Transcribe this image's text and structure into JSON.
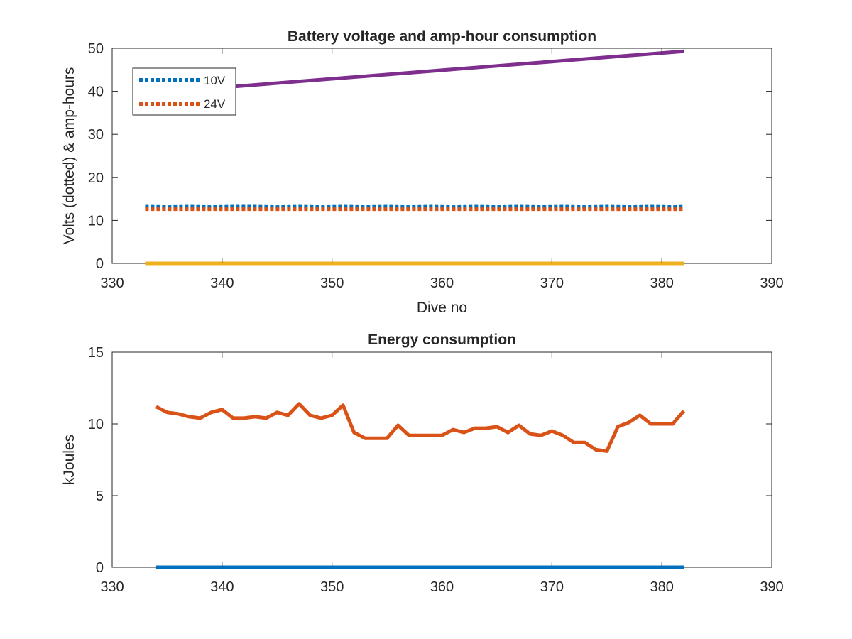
{
  "chart_data": [
    {
      "type": "line",
      "title": "Battery voltage and amp-hour consumption",
      "xlabel": "Dive no",
      "ylabel": "Volts (dotted) & amp-hours",
      "xlim": [
        330,
        390
      ],
      "ylim": [
        0,
        50
      ],
      "xticks": [
        "330",
        "340",
        "350",
        "360",
        "370",
        "380",
        "390"
      ],
      "yticks": [
        "0",
        "10",
        "20",
        "30",
        "40",
        "50"
      ],
      "legend_placement": "top-left",
      "grid": false,
      "series": [
        {
          "name": "10V",
          "style": "dotted",
          "color": "#0072BD",
          "x": [
            333,
            335,
            337,
            339,
            341,
            343,
            345,
            347,
            349,
            351,
            353,
            355,
            357,
            359,
            361,
            363,
            365,
            367,
            369,
            371,
            373,
            375,
            377,
            379,
            381,
            382
          ],
          "y": [
            13.2,
            13.1,
            13.2,
            13.1,
            13.2,
            13.2,
            13.1,
            13.2,
            13.1,
            13.2,
            13.1,
            13.2,
            13.1,
            13.2,
            13.1,
            13.2,
            13.1,
            13.2,
            13.1,
            13.2,
            13.1,
            13.2,
            13.1,
            13.2,
            13.1,
            13.2
          ]
        },
        {
          "name": "24V",
          "style": "dotted",
          "color": "#D95319",
          "x": [
            333,
            335,
            337,
            339,
            341,
            343,
            345,
            347,
            349,
            351,
            353,
            355,
            357,
            359,
            361,
            363,
            365,
            367,
            369,
            371,
            373,
            375,
            377,
            379,
            381,
            382
          ],
          "y": [
            12.6,
            12.6,
            12.6,
            12.6,
            12.6,
            12.6,
            12.6,
            12.6,
            12.6,
            12.6,
            12.6,
            12.6,
            12.6,
            12.6,
            12.6,
            12.6,
            12.6,
            12.6,
            12.6,
            12.6,
            12.6,
            12.6,
            12.6,
            12.6,
            12.6,
            12.6
          ]
        },
        {
          "style": "solid",
          "color": "#EDB120",
          "x": [
            333,
            382
          ],
          "y": [
            0,
            0
          ]
        },
        {
          "style": "solid",
          "color": "#7E2F8E",
          "x": [
            333,
            382
          ],
          "y": [
            39.5,
            49.3
          ]
        }
      ]
    },
    {
      "type": "line",
      "title": "Energy consumption",
      "xlabel": "",
      "ylabel": "kJoules",
      "xlim": [
        330,
        390
      ],
      "ylim": [
        0,
        15
      ],
      "xticks": [
        "330",
        "340",
        "350",
        "360",
        "370",
        "380",
        "390"
      ],
      "yticks": [
        "0",
        "5",
        "10",
        "15"
      ],
      "grid": false,
      "series": [
        {
          "style": "solid",
          "color": "#0072BD",
          "x": [
            334,
            382
          ],
          "y": [
            0,
            0
          ]
        },
        {
          "style": "solid",
          "color": "#D95319",
          "x": [
            334,
            335,
            336,
            337,
            338,
            339,
            340,
            341,
            342,
            343,
            344,
            345,
            346,
            347,
            348,
            349,
            350,
            351,
            352,
            353,
            354,
            355,
            356,
            357,
            358,
            359,
            360,
            361,
            362,
            363,
            364,
            365,
            366,
            367,
            368,
            369,
            370,
            371,
            372,
            373,
            374,
            375,
            376,
            377,
            378,
            379,
            380,
            381,
            382
          ],
          "y": [
            11.2,
            10.8,
            10.7,
            10.5,
            10.4,
            10.8,
            11.0,
            10.4,
            10.4,
            10.5,
            10.4,
            10.8,
            10.6,
            11.4,
            10.6,
            10.4,
            10.6,
            11.3,
            9.4,
            9.0,
            9.0,
            9.0,
            9.9,
            9.2,
            9.2,
            9.2,
            9.2,
            9.6,
            9.4,
            9.7,
            9.7,
            9.8,
            9.4,
            9.9,
            9.3,
            9.2,
            9.5,
            9.2,
            8.7,
            8.7,
            8.2,
            8.1,
            9.8,
            10.1,
            10.6,
            10.0,
            10.0,
            10.0,
            10.9
          ]
        }
      ]
    }
  ]
}
